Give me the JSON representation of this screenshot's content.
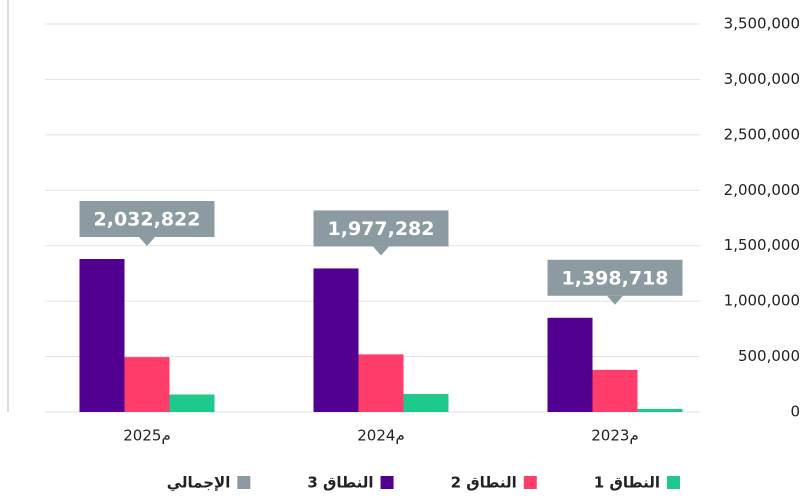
{
  "chart_data": {
    "type": "bar",
    "categories": [
      "2023م",
      "2024م",
      "2025م"
    ],
    "series": [
      {
        "name": "النطاق 1",
        "color": "#1ec98b",
        "values": [
          28000,
          162000,
          158000
        ]
      },
      {
        "name": "النطاق 2",
        "color": "#ff3d6a",
        "values": [
          380000,
          520000,
          495000
        ]
      },
      {
        "name": "النطاق 3",
        "color": "#520090",
        "values": [
          850000,
          1295000,
          1380000
        ]
      },
      {
        "name": "الإجمالي",
        "color": "#8c9ba2",
        "values": [
          1398718,
          1977282,
          2032822
        ],
        "value_labels": [
          "1,398,718",
          "1,977,282",
          "2,032,822"
        ]
      }
    ],
    "ylim": [
      0,
      3500000
    ],
    "yticks": [
      0,
      {
        "value": 500000,
        "label": "500,000"
      },
      {
        "value": 1000000,
        "label": "1,000,000"
      },
      {
        "value": 1500000,
        "label": "1,500,000"
      },
      {
        "value": 2000000,
        "label": "2,000,000"
      },
      {
        "value": 2500000,
        "label": "2,500,000"
      },
      {
        "value": 3000000,
        "label": "3,000,000"
      },
      {
        "value": 3500000,
        "label": "3,500,000"
      }
    ],
    "grid": true
  }
}
